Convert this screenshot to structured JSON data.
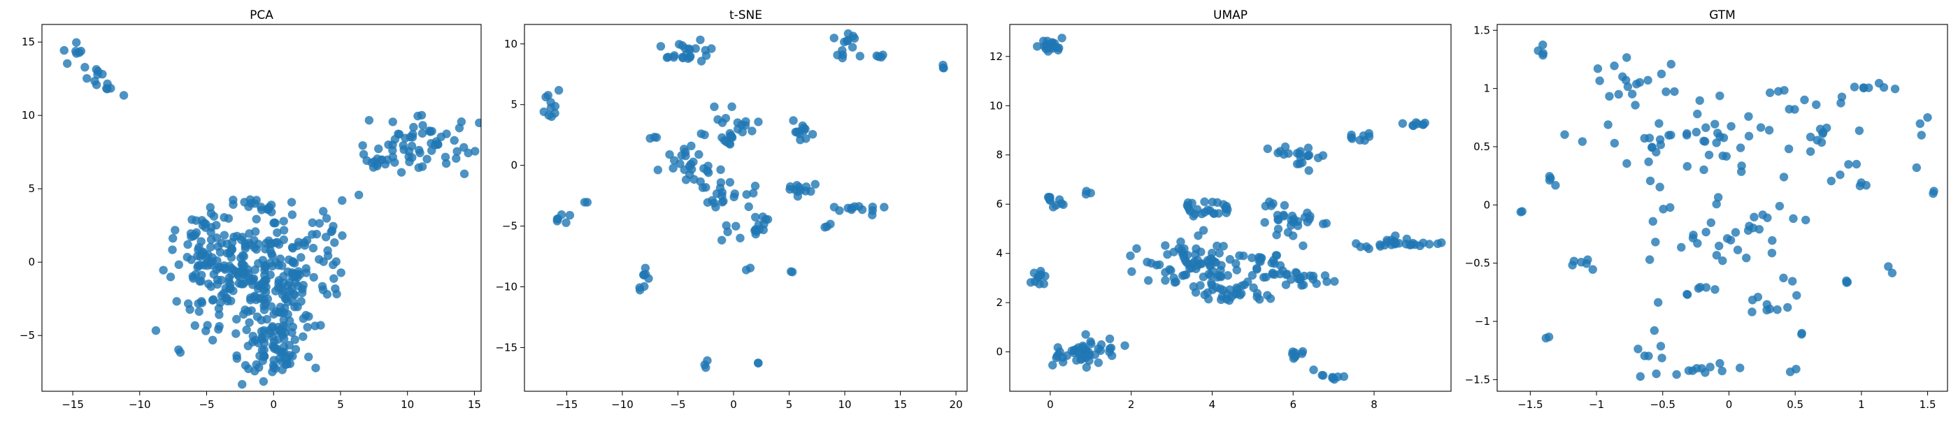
{
  "figure": {
    "background": "#ffffff",
    "point_color": "#1f77b4"
  },
  "chart_data": [
    {
      "type": "scatter",
      "title": "PCA",
      "xlabel": "",
      "ylabel": "",
      "xlim": [
        -17.3,
        15.5
      ],
      "ylim": [
        -8.8,
        16.2
      ],
      "xticks": [
        -15,
        -10,
        -5,
        0,
        5,
        10,
        15
      ],
      "yticks": [
        -5,
        0,
        5,
        10,
        15
      ],
      "grid": false,
      "series": [
        {
          "clusters": [
            {
              "cx": -13.8,
              "cy": 13.2,
              "sx": 1.4,
              "sy": 1.3,
              "n": 20,
              "corr": -0.9
            },
            {
              "cx": -1.5,
              "cy": -1.0,
              "sx": 2.8,
              "sy": 1.8,
              "n": 260
            },
            {
              "cx": -4.8,
              "cy": 1.6,
              "sx": 1.6,
              "sy": 1.2,
              "n": 40
            },
            {
              "cx": 0.5,
              "cy": -4.5,
              "sx": 1.4,
              "sy": 1.4,
              "n": 60
            },
            {
              "cx": -0.5,
              "cy": -6.5,
              "sx": 1.0,
              "sy": 0.8,
              "n": 30
            },
            {
              "cx": 4.2,
              "cy": 2.0,
              "sx": 1.1,
              "sy": 1.6,
              "n": 20
            },
            {
              "cx": 11.0,
              "cy": 8.0,
              "sx": 2.0,
              "sy": 0.9,
              "n": 60
            },
            {
              "cx": 7.5,
              "cy": 6.9,
              "sx": 0.6,
              "sy": 0.3,
              "n": 10
            },
            {
              "cx": -1.0,
              "cy": 4.0,
              "sx": 1.5,
              "sy": 0.2,
              "n": 12
            }
          ]
        }
      ]
    },
    {
      "type": "scatter",
      "title": "t-SNE",
      "xlabel": "",
      "ylabel": "",
      "xlim": [
        -18.8,
        21.0
      ],
      "ylim": [
        -18.6,
        11.6
      ],
      "xticks": [
        -15,
        -10,
        -5,
        0,
        5,
        10,
        15,
        20
      ],
      "yticks": [
        -15,
        -10,
        -5,
        0,
        5,
        10
      ],
      "grid": false,
      "series": [
        {
          "clusters": [
            {
              "cx": -16.5,
              "cy": 5.2,
              "sx": 0.4,
              "sy": 0.6,
              "n": 10
            },
            {
              "cx": -4.3,
              "cy": 9.3,
              "sx": 1.0,
              "sy": 0.6,
              "n": 22
            },
            {
              "cx": 10.3,
              "cy": 10.0,
              "sx": 0.8,
              "sy": 0.5,
              "n": 12
            },
            {
              "cx": 12.8,
              "cy": 9.0,
              "sx": 0.6,
              "sy": 0.1,
              "n": 5
            },
            {
              "cx": 19.0,
              "cy": 8.1,
              "sx": 0.1,
              "sy": 0.1,
              "n": 3
            },
            {
              "cx": 0.0,
              "cy": 3.0,
              "sx": 1.0,
              "sy": 0.8,
              "n": 25
            },
            {
              "cx": -4.0,
              "cy": 0.0,
              "sx": 1.2,
              "sy": 0.8,
              "n": 25
            },
            {
              "cx": -1.0,
              "cy": -2.5,
              "sx": 1.2,
              "sy": 0.6,
              "n": 20
            },
            {
              "cx": 2.5,
              "cy": -5.0,
              "sx": 0.4,
              "sy": 0.4,
              "n": 12
            },
            {
              "cx": 6.0,
              "cy": 3.0,
              "sx": 0.6,
              "sy": 0.5,
              "n": 12
            },
            {
              "cx": 6.0,
              "cy": -2.0,
              "sx": 0.8,
              "sy": 0.4,
              "n": 12
            },
            {
              "cx": 11.5,
              "cy": -3.6,
              "sx": 1.2,
              "sy": 0.3,
              "n": 12
            },
            {
              "cx": -15.5,
              "cy": -4.4,
              "sx": 0.4,
              "sy": 0.2,
              "n": 6
            },
            {
              "cx": -8.0,
              "cy": -9.4,
              "sx": 0.5,
              "sy": 0.6,
              "n": 8
            },
            {
              "cx": -2.5,
              "cy": -16.7,
              "sx": 0.2,
              "sy": 0.4,
              "n": 3
            },
            {
              "cx": 2.2,
              "cy": -16.2,
              "sx": 0.1,
              "sy": 0.1,
              "n": 2
            },
            {
              "cx": 1.5,
              "cy": -8.5,
              "sx": 0.2,
              "sy": 0.2,
              "n": 2
            },
            {
              "cx": 5.3,
              "cy": -8.6,
              "sx": 0.1,
              "sy": 0.1,
              "n": 2
            },
            {
              "cx": -0.5,
              "cy": -6.0,
              "sx": 0.6,
              "sy": 0.5,
              "n": 5
            },
            {
              "cx": -7.0,
              "cy": 2.5,
              "sx": 0.3,
              "sy": 0.2,
              "n": 3
            },
            {
              "cx": -13.5,
              "cy": -3.0,
              "sx": 0.2,
              "sy": 0.1,
              "n": 2
            },
            {
              "cx": 8.5,
              "cy": -5.0,
              "sx": 0.3,
              "sy": 0.3,
              "n": 3
            }
          ]
        }
      ]
    },
    {
      "type": "scatter",
      "title": "UMAP",
      "xlabel": "",
      "ylabel": "",
      "xlim": [
        -1.0,
        9.9
      ],
      "ylim": [
        -1.6,
        13.3
      ],
      "xticks": [
        0,
        2,
        4,
        6,
        8
      ],
      "yticks": [
        0,
        2,
        4,
        6,
        8,
        10,
        12
      ],
      "grid": false,
      "series": [
        {
          "clusters": [
            {
              "cx": 0.0,
              "cy": 12.4,
              "sx": 0.12,
              "sy": 0.15,
              "n": 25
            },
            {
              "cx": 0.15,
              "cy": 6.2,
              "sx": 0.15,
              "sy": 0.15,
              "n": 10
            },
            {
              "cx": 0.9,
              "cy": 6.5,
              "sx": 0.05,
              "sy": 0.05,
              "n": 3
            },
            {
              "cx": -0.3,
              "cy": 3.0,
              "sx": 0.12,
              "sy": 0.2,
              "n": 12
            },
            {
              "cx": 0.9,
              "cy": 0.0,
              "sx": 0.55,
              "sy": 0.25,
              "n": 45,
              "corr": 0.3
            },
            {
              "cx": 3.9,
              "cy": 5.8,
              "sx": 0.4,
              "sy": 0.2,
              "n": 25
            },
            {
              "cx": 3.5,
              "cy": 3.6,
              "sx": 0.7,
              "sy": 0.5,
              "n": 80
            },
            {
              "cx": 4.6,
              "cy": 2.4,
              "sx": 0.4,
              "sy": 0.2,
              "n": 30
            },
            {
              "cx": 5.4,
              "cy": 3.4,
              "sx": 0.4,
              "sy": 0.3,
              "n": 20
            },
            {
              "cx": 5.6,
              "cy": 5.5,
              "sx": 0.2,
              "sy": 0.5,
              "n": 15
            },
            {
              "cx": 6.2,
              "cy": 8.0,
              "sx": 0.3,
              "sy": 0.3,
              "n": 20
            },
            {
              "cx": 6.4,
              "cy": 5.3,
              "sx": 0.4,
              "sy": 0.2,
              "n": 15
            },
            {
              "cx": 6.3,
              "cy": 2.9,
              "sx": 0.4,
              "sy": 0.2,
              "n": 20
            },
            {
              "cx": 7.7,
              "cy": 8.7,
              "sx": 0.2,
              "sy": 0.1,
              "n": 8
            },
            {
              "cx": 9.1,
              "cy": 9.25,
              "sx": 0.15,
              "sy": 0.1,
              "n": 8
            },
            {
              "cx": 8.6,
              "cy": 4.4,
              "sx": 0.5,
              "sy": 0.1,
              "n": 25
            },
            {
              "cx": 6.1,
              "cy": -0.2,
              "sx": 0.1,
              "sy": 0.15,
              "n": 8
            },
            {
              "cx": 6.9,
              "cy": -1.0,
              "sx": 0.2,
              "sy": 0.1,
              "n": 8
            },
            {
              "cx": 7.8,
              "cy": 4.2,
              "sx": 0.1,
              "sy": 0.05,
              "n": 3
            }
          ]
        }
      ]
    },
    {
      "type": "scatter",
      "title": "GTM",
      "xlabel": "",
      "ylabel": "",
      "xlim": [
        -1.75,
        1.65
      ],
      "ylim": [
        -1.6,
        1.55
      ],
      "xticks": [
        -1.5,
        -1.0,
        -0.5,
        0.0,
        0.5,
        1.0,
        1.5
      ],
      "yticks": [
        -1.5,
        -1.0,
        -0.5,
        0.0,
        0.5,
        1.0,
        1.5
      ],
      "grid": false,
      "series": [
        {
          "clusters": [
            {
              "cx": -0.65,
              "cy": 0.75,
              "sx": 0.22,
              "sy": 0.32,
              "n": 40
            },
            {
              "cx": -0.05,
              "cy": 0.55,
              "sx": 0.12,
              "sy": 0.2,
              "n": 22
            },
            {
              "cx": 0.58,
              "cy": 0.8,
              "sx": 0.15,
              "sy": 0.3,
              "n": 22
            },
            {
              "cx": 1.15,
              "cy": 1.0,
              "sx": 0.07,
              "sy": 0.03,
              "n": 6
            },
            {
              "cx": -1.4,
              "cy": 1.3,
              "sx": 0.03,
              "sy": 0.05,
              "n": 4
            },
            {
              "cx": -1.3,
              "cy": 0.2,
              "sx": 0.04,
              "sy": 0.05,
              "n": 4
            },
            {
              "cx": -1.1,
              "cy": -0.5,
              "sx": 0.06,
              "sy": 0.03,
              "n": 6
            },
            {
              "cx": -0.45,
              "cy": -0.3,
              "sx": 0.15,
              "sy": 0.2,
              "n": 10
            },
            {
              "cx": 0.0,
              "cy": -0.2,
              "sx": 0.18,
              "sy": 0.25,
              "n": 18
            },
            {
              "cx": 0.4,
              "cy": -0.3,
              "sx": 0.15,
              "sy": 0.3,
              "n": 12
            },
            {
              "cx": 0.3,
              "cy": -0.85,
              "sx": 0.08,
              "sy": 0.07,
              "n": 8
            },
            {
              "cx": -0.2,
              "cy": -0.75,
              "sx": 0.08,
              "sy": 0.05,
              "n": 6
            },
            {
              "cx": -0.6,
              "cy": -1.3,
              "sx": 0.05,
              "sy": 0.1,
              "n": 8
            },
            {
              "cx": -0.15,
              "cy": -1.42,
              "sx": 0.12,
              "sy": 0.04,
              "n": 10
            },
            {
              "cx": 0.9,
              "cy": -0.65,
              "sx": 0.03,
              "sy": 0.02,
              "n": 3
            },
            {
              "cx": 1.22,
              "cy": -0.55,
              "sx": 0.02,
              "sy": 0.02,
              "n": 2
            },
            {
              "cx": 1.45,
              "cy": 0.55,
              "sx": 0.03,
              "sy": 0.18,
              "n": 4
            },
            {
              "cx": 1.0,
              "cy": 0.2,
              "sx": 0.02,
              "sy": 0.2,
              "n": 4
            },
            {
              "cx": 1.55,
              "cy": 0.12,
              "sx": 0.02,
              "sy": 0.02,
              "n": 2
            },
            {
              "cx": -1.55,
              "cy": -0.15,
              "sx": 0.05,
              "sy": 0.05,
              "n": 2
            },
            {
              "cx": -1.35,
              "cy": -1.15,
              "sx": 0.02,
              "sy": 0.02,
              "n": 2
            },
            {
              "cx": 0.55,
              "cy": -1.1,
              "sx": 0.03,
              "sy": 0.03,
              "n": 2
            },
            {
              "cx": 0.5,
              "cy": -1.42,
              "sx": 0.02,
              "sy": 0.02,
              "n": 2
            }
          ]
        }
      ]
    }
  ]
}
